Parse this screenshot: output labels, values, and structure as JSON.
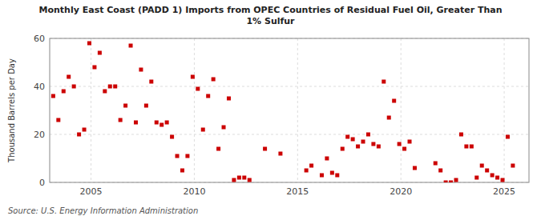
{
  "chart_data": {
    "type": "scatter",
    "title": "Monthly East Coast (PADD 1) Imports from OPEC Countries of Residual Fuel Oil, Greater Than\n1% Sulfur",
    "y_label": "Thousand Barrels per Day",
    "source": "Source: U.S. Energy Information Administration",
    "color": "#cc0000",
    "marker": "square",
    "grid": true,
    "xlim": [
      2003.0,
      2026.2
    ],
    "xticks": [
      2005,
      2010,
      2015,
      2020,
      2025
    ],
    "ylim": [
      0,
      60
    ],
    "yticks": [
      0,
      20,
      40,
      60
    ],
    "x": [
      2003.17,
      2003.42,
      2003.67,
      2003.92,
      2004.17,
      2004.42,
      2004.67,
      2004.92,
      2005.17,
      2005.42,
      2005.67,
      2005.92,
      2006.17,
      2006.42,
      2006.67,
      2006.92,
      2007.17,
      2007.42,
      2007.67,
      2007.92,
      2008.17,
      2008.42,
      2008.67,
      2008.92,
      2009.17,
      2009.42,
      2009.67,
      2009.92,
      2010.17,
      2010.42,
      2010.67,
      2010.92,
      2011.17,
      2011.42,
      2011.67,
      2011.92,
      2012.17,
      2012.42,
      2012.67,
      2013.42,
      2014.17,
      2015.42,
      2015.67,
      2016.17,
      2016.42,
      2016.67,
      2016.92,
      2017.17,
      2017.42,
      2017.67,
      2017.92,
      2018.17,
      2018.42,
      2018.67,
      2018.92,
      2019.17,
      2019.42,
      2019.67,
      2019.92,
      2020.17,
      2020.42,
      2020.67,
      2021.67,
      2021.92,
      2022.17,
      2022.42,
      2022.67,
      2022.92,
      2023.17,
      2023.42,
      2023.67,
      2023.92,
      2024.17,
      2024.42,
      2024.67,
      2024.92,
      2025.17,
      2025.42
    ],
    "values": [
      36,
      26,
      38,
      44,
      40,
      20,
      22,
      58,
      48,
      54,
      38,
      40,
      40,
      26,
      32,
      57,
      25,
      47,
      32,
      42,
      25,
      24,
      25,
      19,
      11,
      5,
      11,
      44,
      39,
      22,
      36,
      43,
      14,
      23,
      35,
      1,
      2,
      2,
      1,
      14,
      12,
      5,
      7,
      3,
      10,
      4,
      3,
      14,
      19,
      18,
      15,
      17,
      20,
      16,
      15,
      42,
      27,
      34,
      16,
      14,
      17,
      6,
      8,
      5,
      0,
      0,
      1,
      20,
      15,
      15,
      2,
      7,
      5,
      3,
      2,
      1,
      19,
      7
    ]
  }
}
